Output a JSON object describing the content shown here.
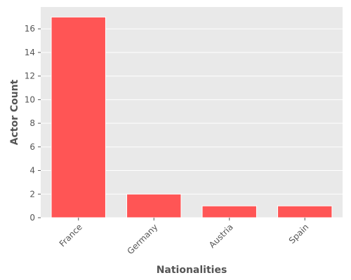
{
  "chart_data": {
    "type": "bar",
    "title": "",
    "xlabel": "Nationalities",
    "ylabel": "Actor Count",
    "categories": [
      "France",
      "Germany",
      "Austria",
      "Spain"
    ],
    "values": [
      17,
      2,
      1,
      1
    ],
    "ylim": [
      0,
      17.85
    ],
    "yticks": [
      0,
      2,
      4,
      6,
      8,
      10,
      12,
      14,
      16
    ],
    "grid": true,
    "bar_color": "#ff5555",
    "bar_edge_color": "#ffffff",
    "background_color": "#e9e9e9",
    "grid_color": "#ffffff"
  }
}
